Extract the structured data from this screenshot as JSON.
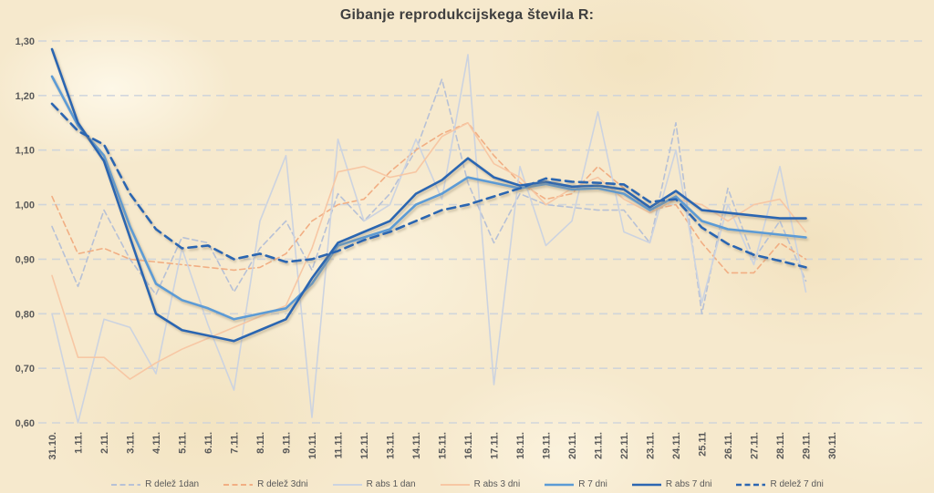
{
  "chart_data": {
    "type": "line",
    "title": "Gibanje reprodukcijskega števila R:",
    "xlabel": "",
    "ylabel": "",
    "ylim": [
      0.6,
      1.3
    ],
    "grid": "horizontal-dashed",
    "legend_position": "bottom",
    "background": "#f6e9cd",
    "y_ticks": [
      {
        "label": "1,30",
        "value": 1.3
      },
      {
        "label": "1,20",
        "value": 1.2
      },
      {
        "label": "1,10",
        "value": 1.1
      },
      {
        "label": "1,00",
        "value": 1.0
      },
      {
        "label": "0,90",
        "value": 0.9
      },
      {
        "label": "0,80",
        "value": 0.8
      },
      {
        "label": "0,70",
        "value": 0.7
      },
      {
        "label": "0,60",
        "value": 0.6
      }
    ],
    "categories": [
      "31.10.",
      "1.11.",
      "2.11.",
      "3.11.",
      "4.11.",
      "5.11.",
      "6.11.",
      "7.11.",
      "8.11.",
      "9.11.",
      "10.11.",
      "11.11.",
      "12.11.",
      "13.11.",
      "14.11.",
      "15.11.",
      "16.11.",
      "17.11.",
      "18.11.",
      "19.11.",
      "20.11.",
      "21.11.",
      "22.11.",
      "23.11.",
      "24.11.",
      "25.11",
      "26.11.",
      "27.11.",
      "28.11.",
      "29.11.",
      "30.11."
    ],
    "series": [
      {
        "name": "R delež 1dan",
        "color": "#b7c1d6",
        "width": 1.6,
        "dash": "6 4",
        "shadow": false,
        "values": [
          0.96,
          0.85,
          0.99,
          0.9,
          0.835,
          0.94,
          0.93,
          0.84,
          0.92,
          0.97,
          0.88,
          1.02,
          0.97,
          1.02,
          1.1,
          1.23,
          1.04,
          0.93,
          1.02,
          1.0,
          0.995,
          0.99,
          0.99,
          0.93,
          1.15,
          0.8,
          1.03,
          0.9,
          0.97,
          0.86,
          null
        ]
      },
      {
        "name": "R delež 3dni",
        "color": "#f1ae83",
        "width": 1.6,
        "dash": "6 4",
        "shadow": false,
        "values": [
          1.015,
          0.91,
          0.92,
          0.9,
          0.895,
          0.89,
          0.885,
          0.88,
          0.885,
          0.91,
          0.97,
          1.0,
          1.01,
          1.06,
          1.1,
          1.13,
          1.15,
          1.09,
          1.04,
          1.01,
          1.02,
          1.07,
          1.03,
          0.99,
          1.0,
          0.93,
          0.875,
          0.875,
          0.93,
          0.9,
          null
        ]
      },
      {
        "name": "R abs 1 dan",
        "color": "#ccd3e0",
        "width": 1.6,
        "dash": null,
        "shadow": false,
        "values": [
          0.8,
          0.6,
          0.79,
          0.775,
          0.69,
          0.92,
          0.78,
          0.66,
          0.97,
          1.09,
          0.61,
          1.12,
          0.97,
          1.0,
          1.12,
          1.01,
          1.275,
          0.67,
          1.07,
          0.925,
          0.97,
          1.17,
          0.95,
          0.93,
          1.1,
          0.82,
          1.0,
          0.89,
          1.07,
          0.84,
          null
        ]
      },
      {
        "name": "R abs 3 dni",
        "color": "#f7c7a4",
        "width": 1.6,
        "dash": null,
        "shadow": false,
        "values": [
          0.87,
          0.72,
          0.72,
          0.68,
          0.71,
          0.735,
          0.755,
          0.775,
          0.795,
          0.815,
          0.92,
          1.06,
          1.07,
          1.05,
          1.06,
          1.125,
          1.15,
          1.075,
          1.05,
          1.0,
          1.03,
          1.05,
          1.01,
          0.985,
          1.01,
          1.0,
          0.97,
          1.0,
          1.01,
          0.95,
          null
        ]
      },
      {
        "name": "R 7 dni",
        "color": "#5b9bd5",
        "width": 2.6,
        "dash": null,
        "shadow": true,
        "values": [
          1.235,
          1.145,
          1.09,
          0.96,
          0.855,
          0.825,
          0.81,
          0.79,
          0.8,
          0.81,
          0.855,
          0.925,
          0.94,
          0.955,
          1.0,
          1.02,
          1.05,
          1.04,
          1.03,
          1.038,
          1.028,
          1.03,
          1.02,
          0.99,
          1.015,
          0.97,
          0.955,
          0.95,
          0.945,
          0.94,
          null
        ]
      },
      {
        "name": "R abs 7 dni",
        "color": "#2c66b1",
        "width": 2.6,
        "dash": null,
        "shadow": true,
        "values": [
          1.285,
          1.15,
          1.08,
          0.94,
          0.8,
          0.77,
          0.76,
          0.75,
          0.77,
          0.79,
          0.865,
          0.93,
          0.95,
          0.97,
          1.02,
          1.045,
          1.085,
          1.05,
          1.035,
          1.042,
          1.033,
          1.035,
          1.028,
          0.995,
          1.025,
          0.99,
          0.985,
          0.98,
          0.975,
          0.975,
          null
        ]
      },
      {
        "name": "R delež 7 dni",
        "color": "#2c66b1",
        "width": 2.6,
        "dash": "9 6",
        "shadow": true,
        "values": [
          1.185,
          1.135,
          1.11,
          1.02,
          0.955,
          0.92,
          0.925,
          0.9,
          0.91,
          0.895,
          0.9,
          0.915,
          0.935,
          0.95,
          0.97,
          0.99,
          1.0,
          1.015,
          1.03,
          1.048,
          1.042,
          1.04,
          1.037,
          1.005,
          1.01,
          0.958,
          0.928,
          0.908,
          0.897,
          0.885,
          null
        ]
      }
    ]
  }
}
